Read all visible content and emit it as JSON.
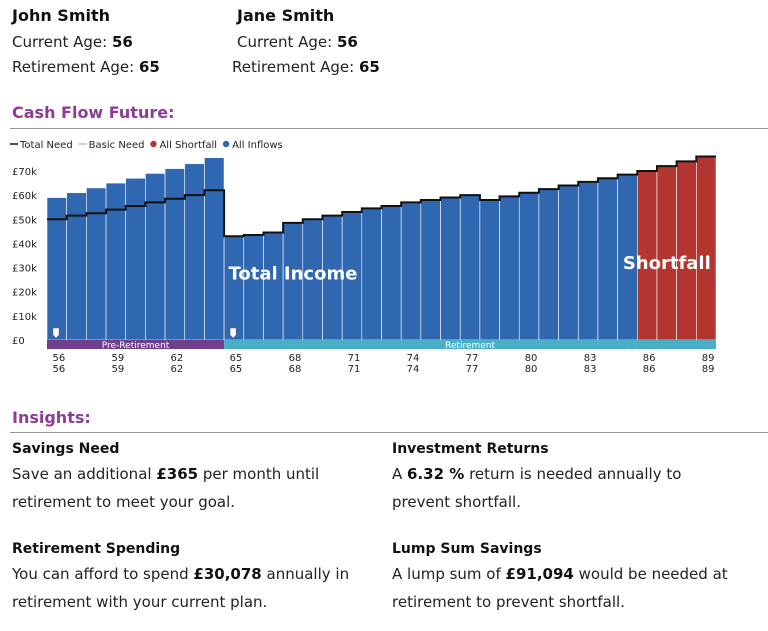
{
  "people": [
    {
      "name": "John Smith",
      "current_age_label": "Current Age:",
      "current_age": "56",
      "retirement_age_label": "Retirement Age:",
      "retirement_age": "65"
    },
    {
      "name": "Jane Smith",
      "current_age_label": "Current Age:",
      "current_age": "56",
      "retirement_age_label": "Retirement Age:",
      "retirement_age": "65"
    }
  ],
  "cash_flow_title": "Cash Flow Future:",
  "chart_data": {
    "type": "bar",
    "legend": [
      {
        "label": "Total Need",
        "marker": "line",
        "color": "#111111"
      },
      {
        "label": "Basic Need",
        "marker": "line",
        "color": "#9ad3dc"
      },
      {
        "label": "All Shortfall",
        "marker": "dot",
        "color": "#b3352f"
      },
      {
        "label": "All Inflows",
        "marker": "dot",
        "color": "#2f67b1"
      }
    ],
    "legend_position": "top-left",
    "ylim": [
      0,
      80000
    ],
    "y_ticks": [
      {
        "value": 0,
        "label": "£0"
      },
      {
        "value": 10000,
        "label": "£10k"
      },
      {
        "value": 20000,
        "label": "£20k"
      },
      {
        "value": 30000,
        "label": "£30k"
      },
      {
        "value": 40000,
        "label": "£40k"
      },
      {
        "value": 50000,
        "label": "£50k"
      },
      {
        "value": 60000,
        "label": "£60k"
      },
      {
        "value": 70000,
        "label": "£70k"
      }
    ],
    "ages": [
      56,
      57,
      58,
      59,
      60,
      61,
      62,
      63,
      64,
      65,
      66,
      67,
      68,
      69,
      70,
      71,
      72,
      73,
      74,
      75,
      76,
      77,
      78,
      79,
      80,
      81,
      82,
      83,
      84,
      85,
      86,
      87,
      88,
      89
    ],
    "x_tick_ages": [
      56,
      59,
      62,
      65,
      68,
      71,
      74,
      77,
      80,
      83,
      86,
      89
    ],
    "x_tick_rows": [
      [
        "56",
        "59",
        "62",
        "65",
        "68",
        "71",
        "74",
        "77",
        "80",
        "83",
        "86",
        "89"
      ],
      [
        "56",
        "59",
        "62",
        "65",
        "68",
        "71",
        "74",
        "77",
        "80",
        "83",
        "86",
        "89"
      ]
    ],
    "series": [
      {
        "name": "All Inflows",
        "color": "#2f67b1",
        "values": [
          59000,
          61000,
          63000,
          65000,
          67000,
          69000,
          71000,
          73000,
          75500,
          43000,
          43500,
          44500,
          48500,
          50000,
          51500,
          53000,
          54500,
          55500,
          57000,
          58000,
          59000,
          60000,
          58000,
          59500,
          61000,
          62500,
          64000,
          65500,
          67000,
          68500,
          0,
          0,
          0,
          0
        ]
      },
      {
        "name": "All Shortfall",
        "color": "#b3352f",
        "values": [
          0,
          0,
          0,
          0,
          0,
          0,
          0,
          0,
          0,
          0,
          0,
          0,
          0,
          0,
          0,
          0,
          0,
          0,
          0,
          0,
          0,
          0,
          0,
          0,
          0,
          0,
          0,
          0,
          0,
          0,
          70000,
          72000,
          74000,
          76000
        ]
      },
      {
        "name": "Total Need",
        "color": "#111111",
        "values": [
          50000,
          51500,
          52500,
          54000,
          55500,
          57000,
          58500,
          60000,
          62000,
          43000,
          43500,
          44500,
          48500,
          50000,
          51500,
          53000,
          54500,
          55500,
          57000,
          58000,
          59000,
          60000,
          58000,
          59500,
          61000,
          62500,
          64000,
          65500,
          67000,
          68500,
          70000,
          72000,
          74000,
          76000
        ]
      }
    ],
    "phases": [
      {
        "label": "Pre-Retirement",
        "from_age": 56,
        "to_age": 64,
        "color": "#6e3f8d"
      },
      {
        "label": "Retirement",
        "from_age": 65,
        "to_age": 89,
        "color": "#4aaec6"
      }
    ],
    "phase_markers": [
      56,
      65
    ],
    "annotations": [
      {
        "text": "Total Income",
        "at_age": 68,
        "at_value": 25000
      },
      {
        "text": "Shortfall",
        "at_age": 87,
        "at_value": 29500
      }
    ]
  },
  "insights_title": "Insights:",
  "insights": {
    "savings_need": {
      "title": "Savings Need",
      "prefix": "Save an additional ",
      "value": "£365",
      "suffix": " per month until retirement to meet your goal."
    },
    "investment_returns": {
      "title": "Investment Returns",
      "prefix": "A ",
      "value": "6.32 %",
      "suffix": " return is needed annually to prevent shortfall."
    },
    "retirement_spending": {
      "title": "Retirement Spending",
      "prefix": "You can afford to spend ",
      "value": "£30,078",
      "suffix": " annually in retirement with your current plan."
    },
    "lump_sum": {
      "title": "Lump Sum Savings",
      "prefix": "A lump sum of ",
      "value": "£91,094",
      "suffix": " would be needed at retirement to prevent shortfall."
    }
  }
}
